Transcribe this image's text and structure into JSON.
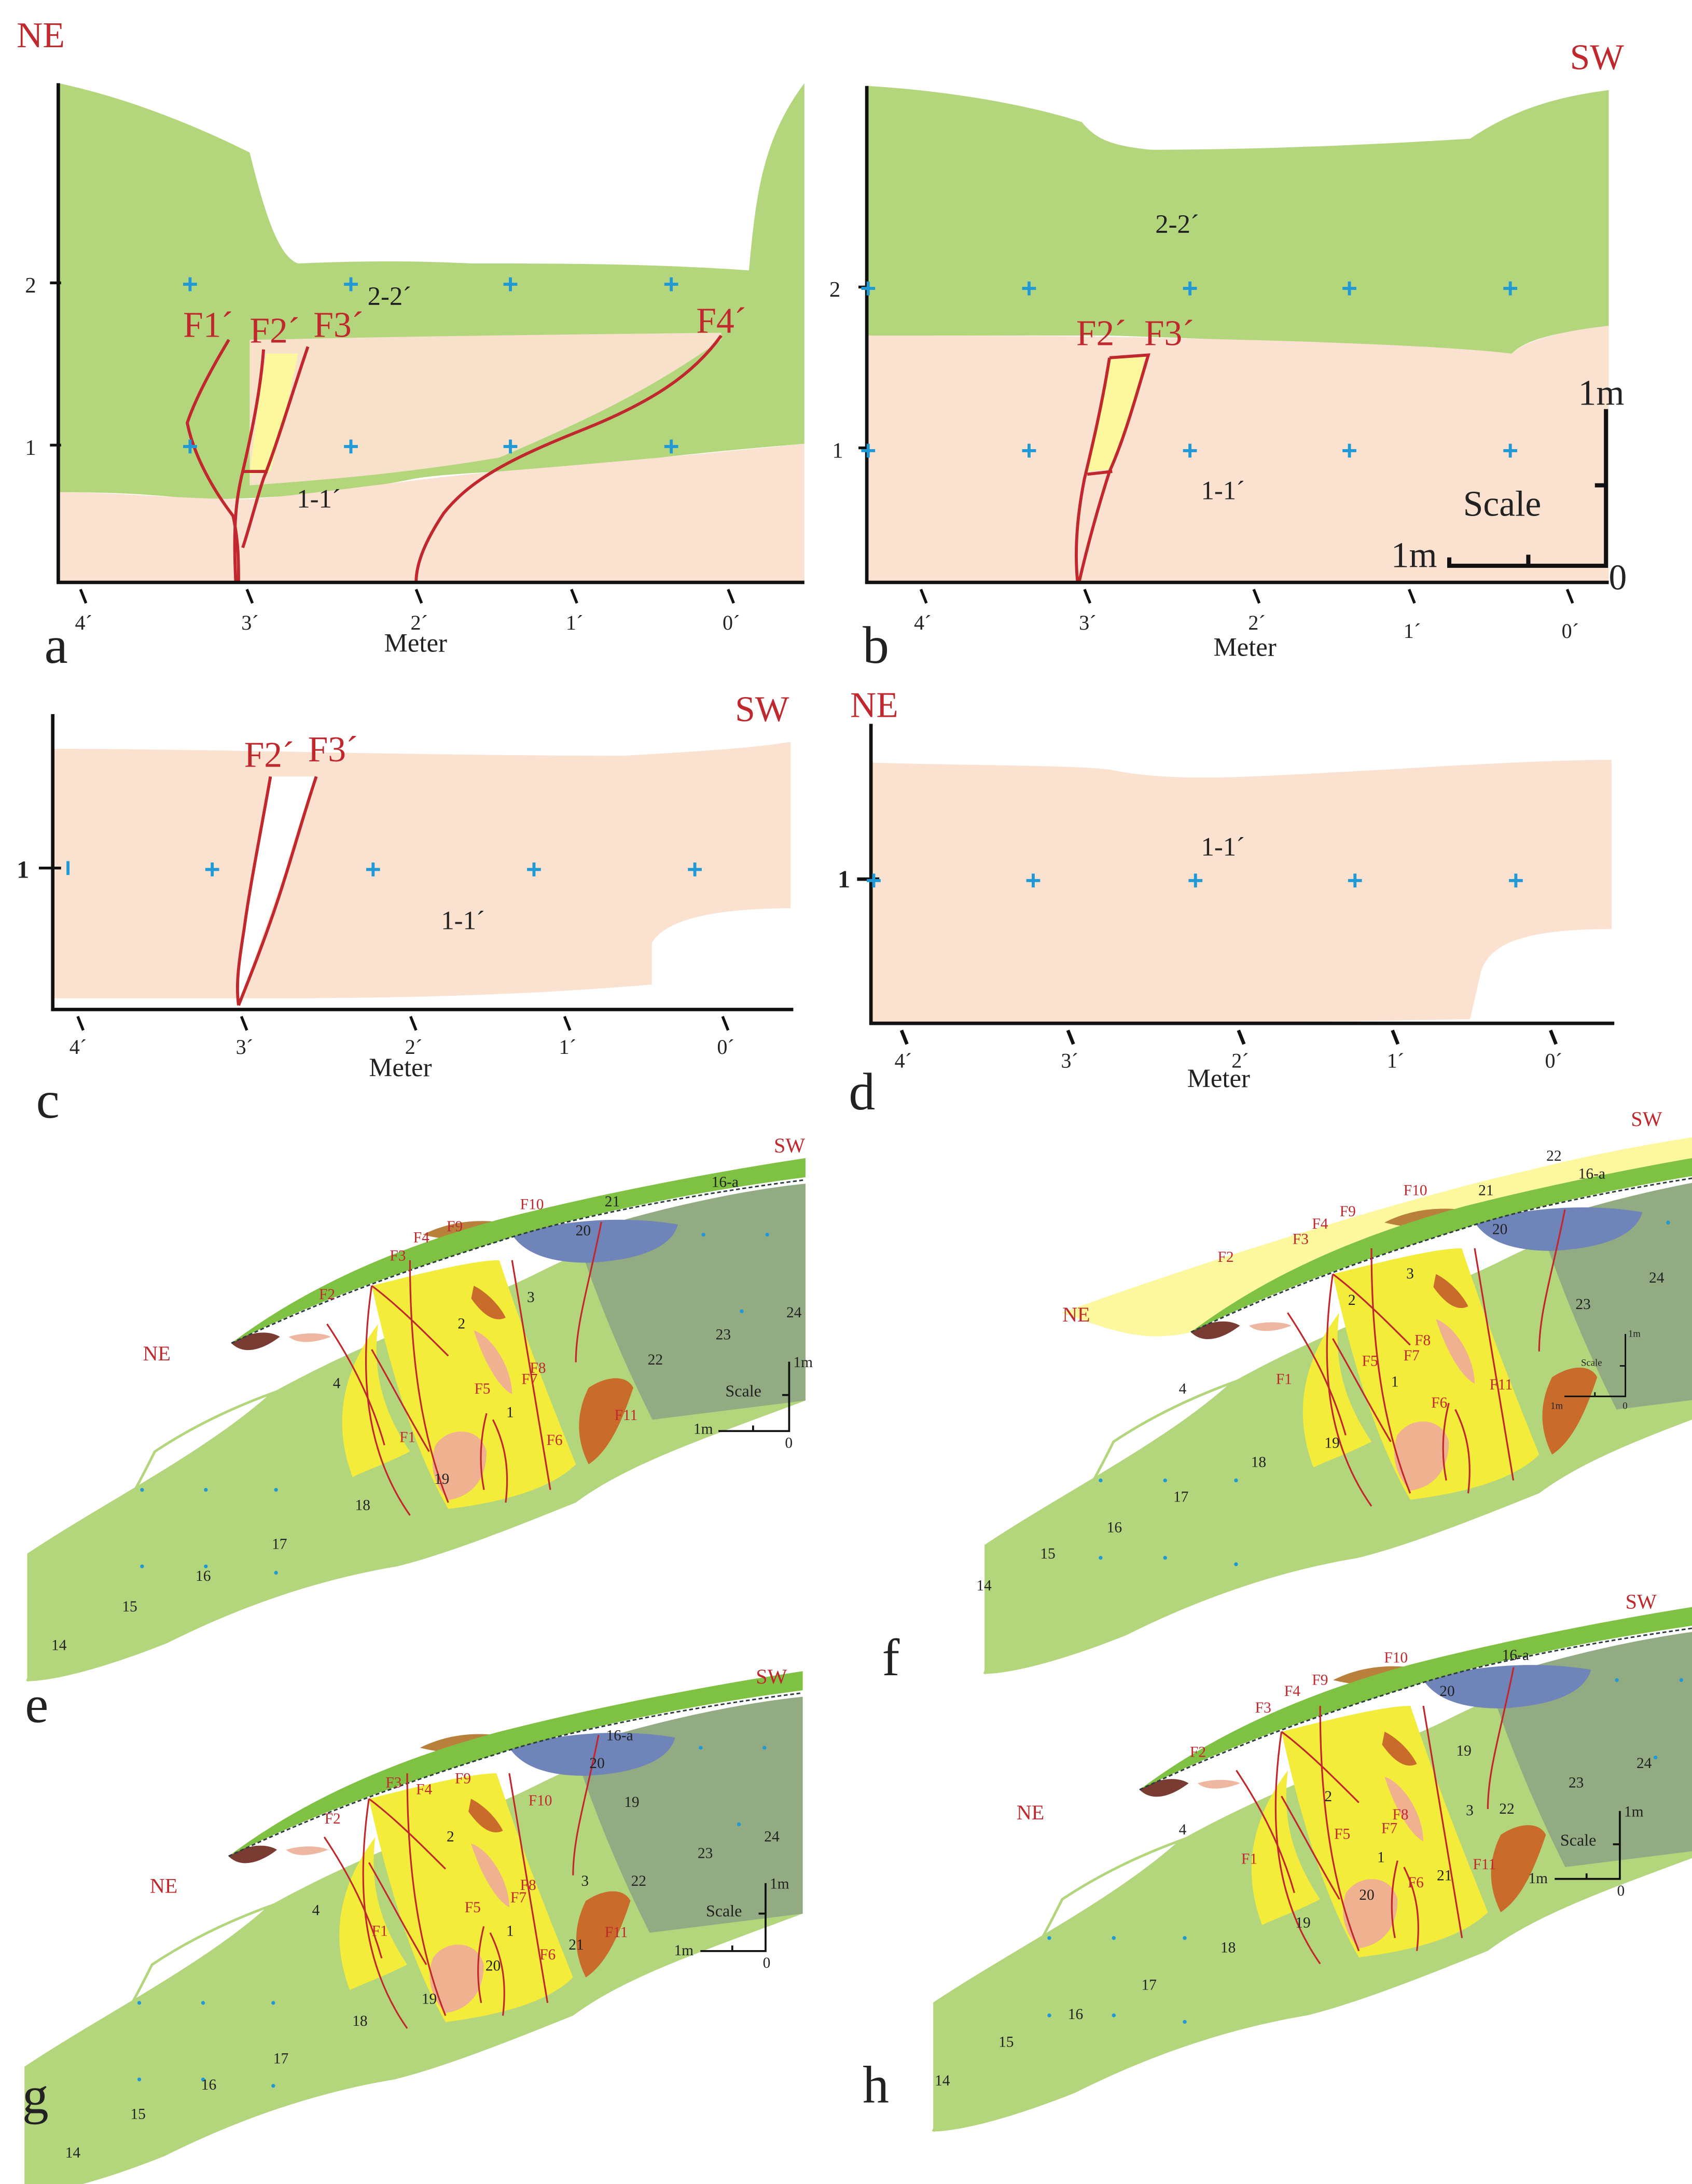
{
  "colors": {
    "green_light": "#b3d67c",
    "green_grey": "#92ab82",
    "green_bright": "#7fc142",
    "peach": "#fbe1cf",
    "yellow": "#f3ec3a",
    "pale_yellow": "#fdf89e",
    "blue": "#6f84b8",
    "orange_brown": "#c96b2a",
    "tan": "#b9803c",
    "salmon": "#efb190",
    "dark_brown": "#7a3b33",
    "pink": "#eeb7a2",
    "fault_red": "#c0282d",
    "marker_blue": "#1f9ad6",
    "outline_teal": "#4fa2a0"
  },
  "panels": {
    "a": {
      "letter": "a",
      "direction": "NE",
      "y_ticks": [
        "1",
        "2"
      ],
      "x_ticks": [
        "4´",
        "3´",
        "2´",
        "1´",
        "0´"
      ],
      "xlabel": "Meter",
      "units": [
        "2-2´",
        "1-1´"
      ],
      "faults": [
        "F1´",
        "F2´",
        "F3´",
        "F4´"
      ]
    },
    "b": {
      "letter": "b",
      "direction": "SW",
      "y_ticks": [
        "1",
        "2"
      ],
      "x_ticks": [
        "4´",
        "3´",
        "2´",
        "1´",
        "0´"
      ],
      "xlabel": "Meter",
      "units": [
        "2-2´",
        "1-1´"
      ],
      "faults": [
        "F2´",
        "F3´"
      ],
      "scale": {
        "title": "Scale",
        "vertical": "1m",
        "horizontal": "1m",
        "zero": "0"
      }
    },
    "c": {
      "letter": "c",
      "direction": "SW",
      "y_ticks": [
        "1"
      ],
      "x_ticks": [
        "4´",
        "3´",
        "2´",
        "1´",
        "0´"
      ],
      "xlabel": "Meter",
      "units": [
        "1-1´"
      ],
      "faults": [
        "F2´",
        "F3´"
      ]
    },
    "d": {
      "letter": "d",
      "direction": "NE",
      "y_ticks": [
        "1"
      ],
      "x_ticks": [
        "4´",
        "3´",
        "2´",
        "1´",
        "0´"
      ],
      "xlabel": "Meter",
      "units": [
        "1-1´"
      ]
    },
    "e": {
      "letter": "e",
      "dir_left": "NE",
      "dir_right": "SW",
      "faults": [
        "F1",
        "F2",
        "F3",
        "F4",
        "F5",
        "F6",
        "F7",
        "F8",
        "F9",
        "F10",
        "F11"
      ],
      "layers": [
        "1",
        "2",
        "3",
        "4",
        "14",
        "15",
        "16",
        "16-a",
        "17",
        "18",
        "19",
        "20",
        "21",
        "22",
        "23",
        "24"
      ],
      "scale": {
        "title": "Scale",
        "vertical": "1m",
        "horizontal": "1m",
        "zero": "0"
      }
    },
    "f": {
      "letter": "f",
      "dir_left": "NE",
      "dir_right": "SW",
      "faults": [
        "F1",
        "F2",
        "F3",
        "F4",
        "F5",
        "F6",
        "F7",
        "F8",
        "F9",
        "F10",
        "F11"
      ],
      "layers": [
        "1",
        "2",
        "3",
        "4",
        "14",
        "15",
        "16",
        "16-a",
        "17",
        "18",
        "19",
        "20",
        "21",
        "22",
        "23",
        "24"
      ],
      "scale": {
        "title": "Scale",
        "vertical": "1m",
        "horizontal": "1m",
        "zero": "0"
      }
    },
    "g": {
      "letter": "g",
      "dir_left": "NE",
      "dir_right": "SW",
      "faults": [
        "F1",
        "F2",
        "F3",
        "F4",
        "F5",
        "F6",
        "F7",
        "F8",
        "F9",
        "F10",
        "F11"
      ],
      "layers": [
        "1",
        "2",
        "3",
        "4",
        "14",
        "15",
        "16",
        "16-a",
        "17",
        "18",
        "19",
        "20",
        "21",
        "22",
        "23",
        "24"
      ],
      "scale": {
        "title": "Scale",
        "vertical": "1m",
        "horizontal": "1m",
        "zero": "0"
      }
    },
    "h": {
      "letter": "h",
      "dir_left": "NE",
      "dir_right": "SW",
      "faults": [
        "F1",
        "F2",
        "F3",
        "F4",
        "F5",
        "F6",
        "F7",
        "F8",
        "F9",
        "F10",
        "F11"
      ],
      "layers": [
        "1",
        "2",
        "3",
        "4",
        "14",
        "15",
        "16",
        "16-a",
        "17",
        "18",
        "19",
        "20",
        "21",
        "22",
        "23",
        "24"
      ],
      "scale": {
        "title": "Scale",
        "vertical": "1m",
        "horizontal": "1m",
        "zero": "0"
      }
    }
  }
}
